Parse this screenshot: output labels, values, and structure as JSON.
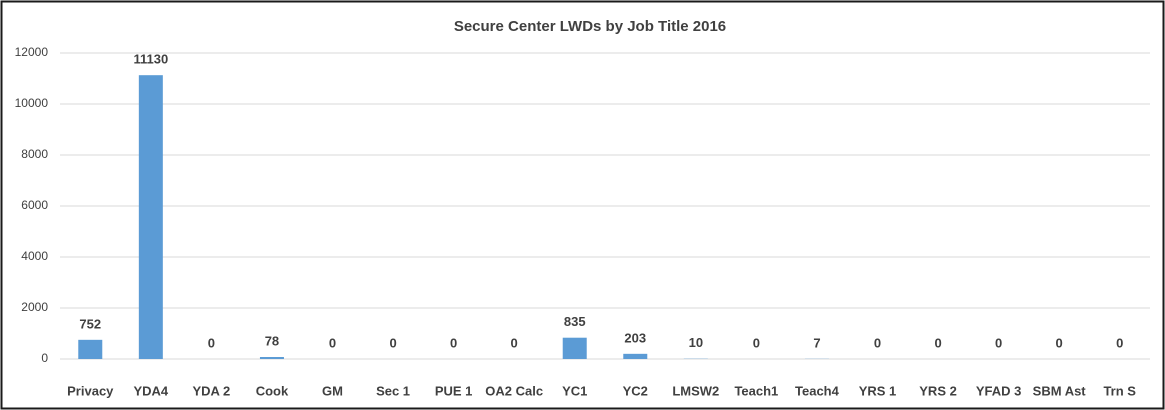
{
  "chart_data": {
    "type": "bar",
    "title": "Secure Center LWDs by Job Title 2016",
    "categories": [
      "Privacy",
      "YDA4",
      "YDA 2",
      "Cook",
      "GM",
      "Sec 1",
      "PUE 1",
      "OA2 Calc",
      "YC1",
      "YC2",
      "LMSW2",
      "Teach1",
      "Teach4",
      "YRS 1",
      "YRS 2",
      "YFAD 3",
      "SBM Ast",
      "Trn S"
    ],
    "values": [
      752,
      11130,
      0,
      78,
      0,
      0,
      0,
      0,
      835,
      203,
      10,
      0,
      7,
      0,
      0,
      0,
      0,
      0
    ],
    "color": "#5b9bd5",
    "ylim": [
      0,
      12000
    ],
    "yticks": [
      0,
      2000,
      4000,
      6000,
      8000,
      10000,
      12000
    ],
    "grid": true
  }
}
